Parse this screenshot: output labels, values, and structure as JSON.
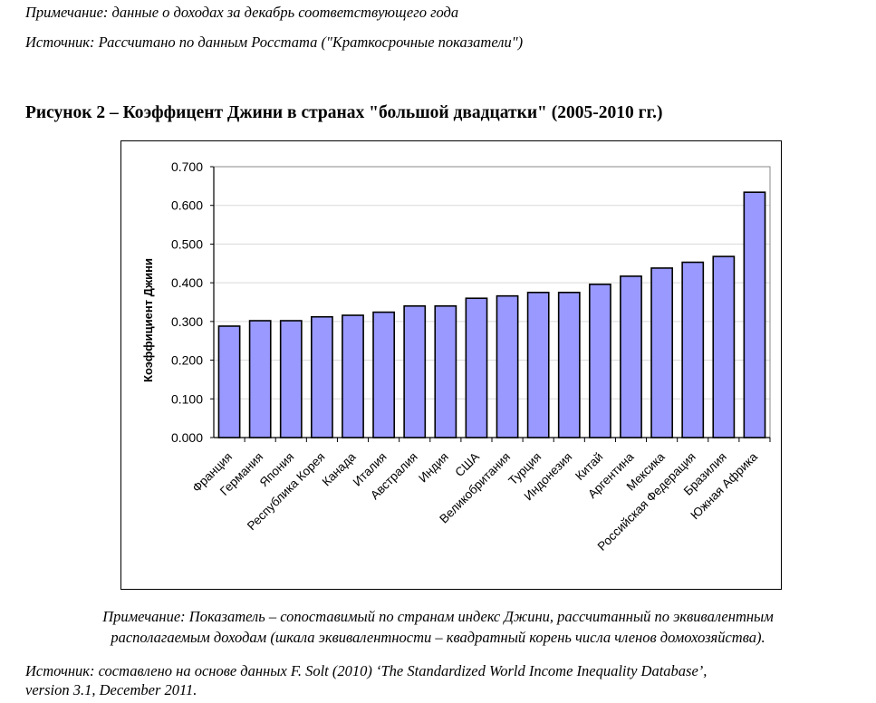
{
  "header": {
    "note": "Примечание: данные о доходах за декабрь соответствующего года",
    "source": "Источник: Рассчитано по данным Росстата (\"Краткосрочные показатели\")"
  },
  "figure_title": "Рисунок 2 – Коэффицент Джини в странах \"большой двадцатки\" (2005-2010 гг.)",
  "footer": {
    "note_line1": "Примечание: Показатель – сопоставимый по странам индекс Джини, рассчитанный по эквивалентным",
    "note_line2": "располагаемым доходам (шкала эквивалентности – квадратный корень числа членов домохозяйства).",
    "source_line1": "Источник: составлено на основе данных F. Solt (2010) ‘The Standardized World Income Inequality Database’,",
    "source_line2": "version 3.1, December 2011."
  },
  "chart_data": {
    "type": "bar",
    "title": "",
    "xlabel": "",
    "ylabel": "Коэффициент Джини",
    "ylim": [
      0,
      0.7
    ],
    "yticks": [
      "0.000",
      "0.100",
      "0.200",
      "0.300",
      "0.400",
      "0.500",
      "0.600",
      "0.700"
    ],
    "grid": true,
    "bar_color": "#9999ff",
    "categories": [
      "Франция",
      "Германия",
      "Япония",
      "Республика Корея",
      "Канада",
      "Италия",
      "Австралия",
      "Индия",
      "США",
      "Великобритания",
      "Турция",
      "Индонезия",
      "Китай",
      "Аргентина",
      "Мексика",
      "Российская Федерация",
      "Бразилия",
      "Южная Африка"
    ],
    "values": [
      0.288,
      0.302,
      0.302,
      0.312,
      0.316,
      0.324,
      0.34,
      0.34,
      0.36,
      0.366,
      0.375,
      0.375,
      0.396,
      0.417,
      0.438,
      0.453,
      0.468,
      0.634
    ]
  }
}
